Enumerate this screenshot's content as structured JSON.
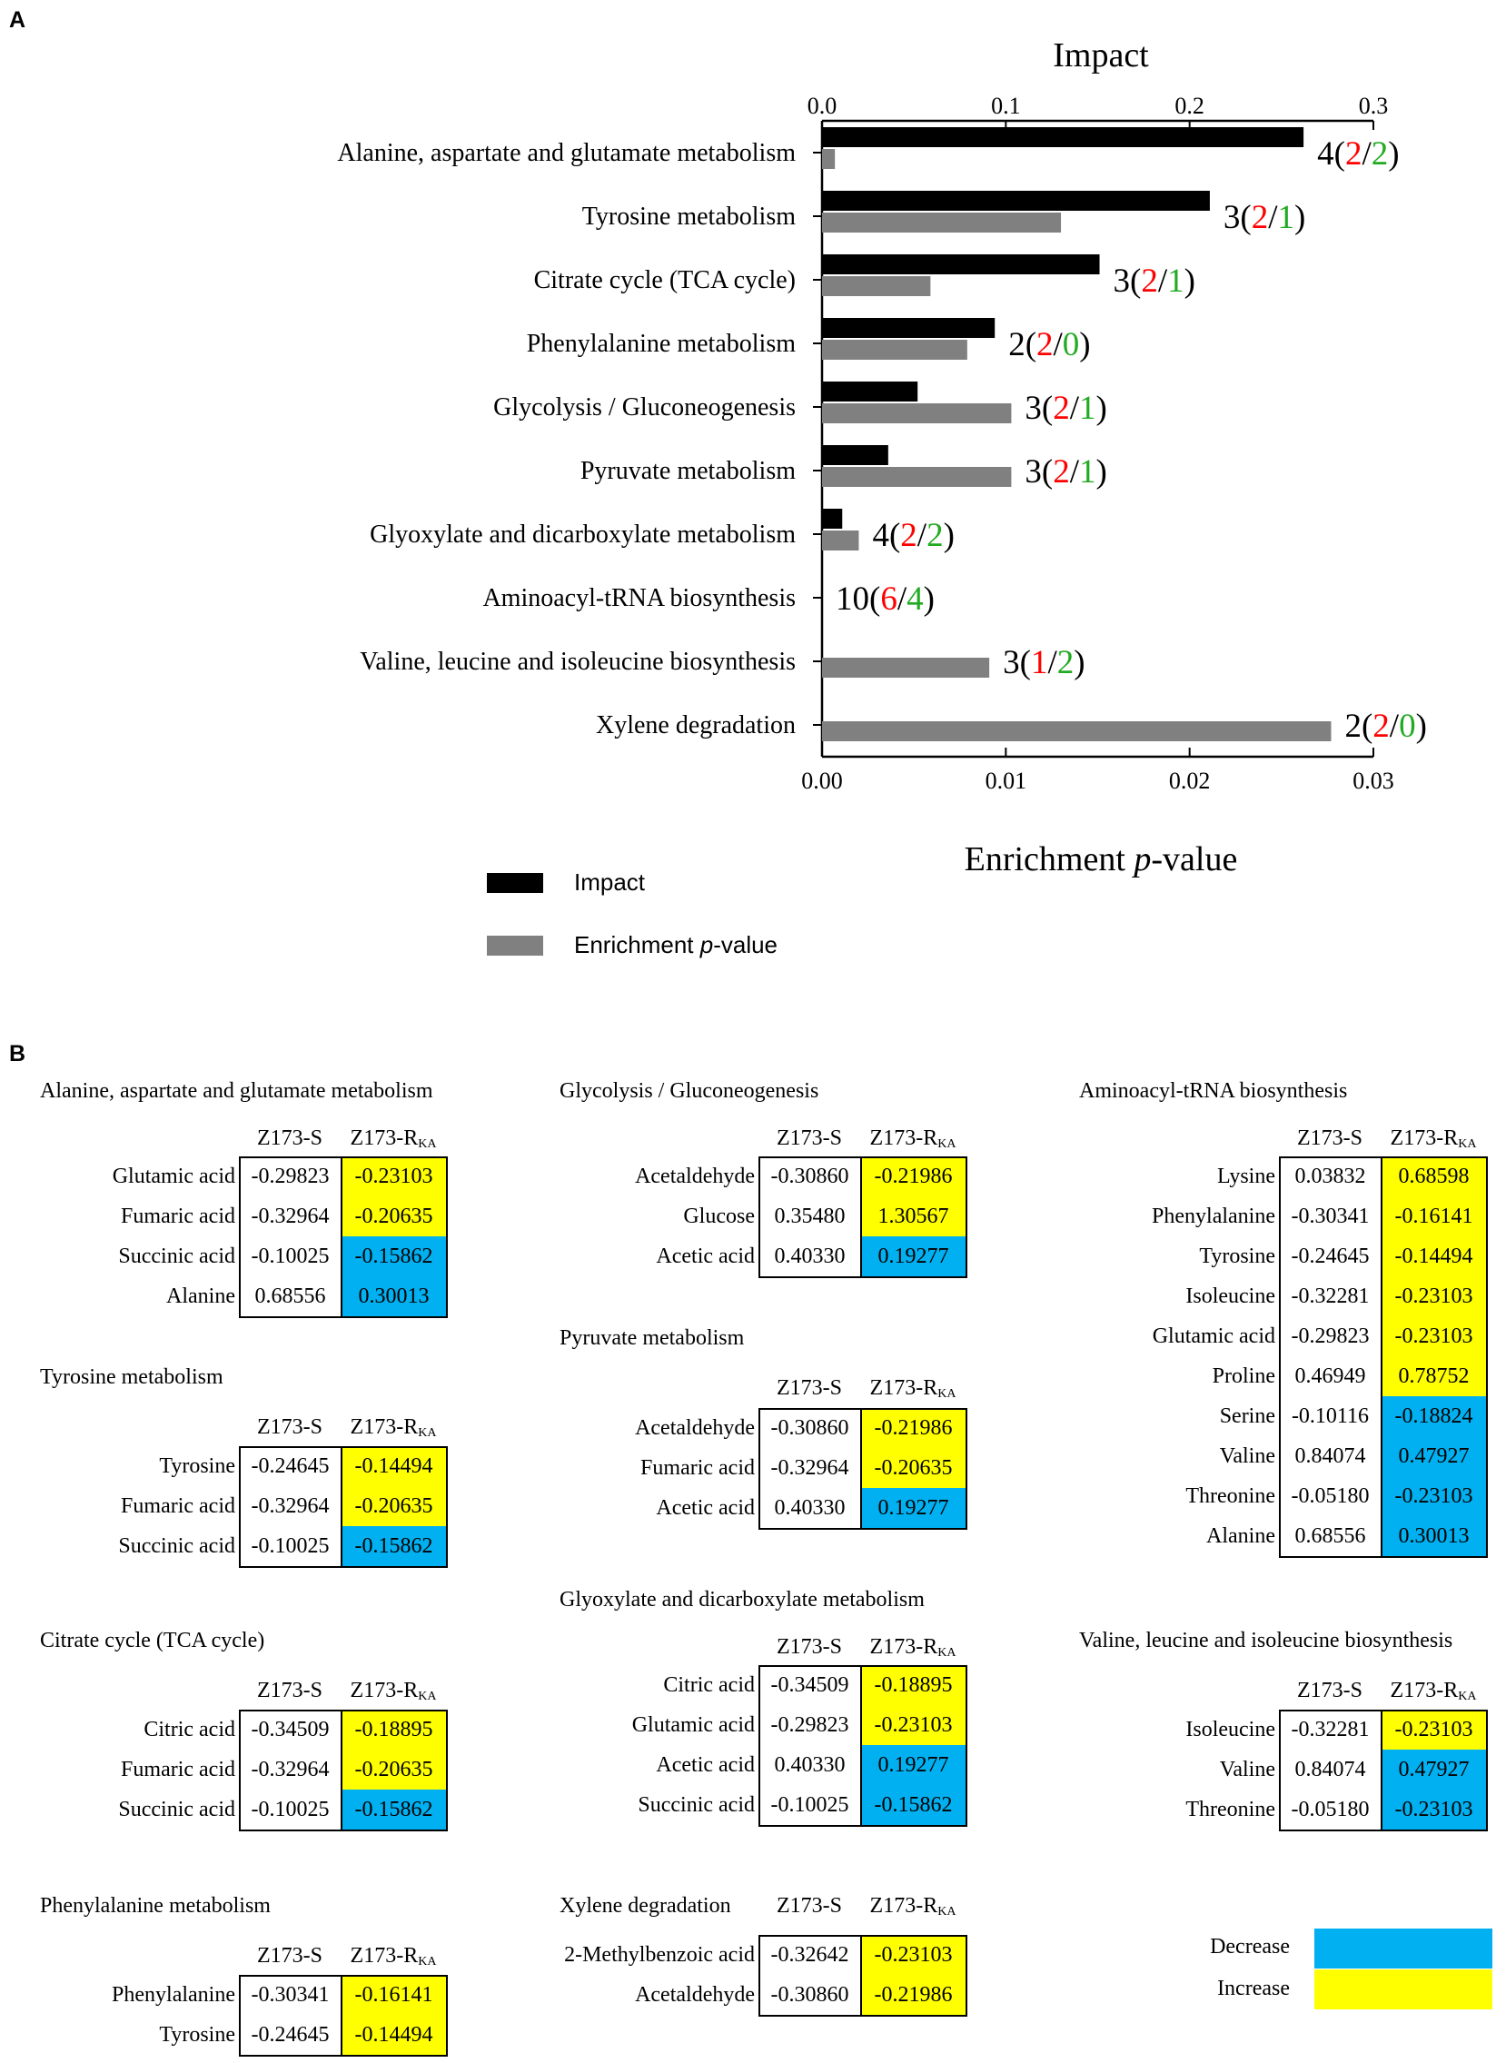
{
  "panel_a": {
    "letter": "A"
  },
  "panel_b": {
    "letter": "B"
  },
  "chart_data": {
    "type": "bar",
    "orientation": "horizontal",
    "top_axis": {
      "label": "Impact",
      "range": [
        0,
        0.3
      ],
      "ticks": [
        "0.0",
        "0.1",
        "0.2",
        "0.3"
      ]
    },
    "bottom_axis": {
      "label": "Enrichment p-value",
      "label_prefix": "Enrichment ",
      "label_italic": "p",
      "label_suffix": "-value",
      "range": [
        0,
        0.03
      ],
      "ticks": [
        "0.00",
        "0.01",
        "0.02",
        "0.03"
      ]
    },
    "categories": [
      "Alanine, aspartate and glutamate metabolism",
      "Tyrosine metabolism",
      "Citrate cycle (TCA cycle)",
      "Phenylalanine metabolism",
      "Glycolysis / Gluconeogenesis",
      "Pyruvate metabolism",
      "Glyoxylate and dicarboxylate metabolism",
      "Aminoacyl-tRNA biosynthesis",
      "Valine, leucine and isoleucine biosynthesis",
      "Xylene degradation"
    ],
    "series": [
      {
        "name": "Impact",
        "color": "#000000",
        "values": [
          0.262,
          0.211,
          0.151,
          0.094,
          0.052,
          0.036,
          0.011,
          0.0,
          0.0,
          0.0
        ]
      },
      {
        "name": "Enrichment p-value",
        "color": "#808080",
        "values": [
          0.0007,
          0.013,
          0.0059,
          0.0079,
          0.0103,
          0.0103,
          0.002,
          0.0,
          0.0091,
          0.0277
        ]
      }
    ],
    "annotations": [
      {
        "total": "4",
        "up": "2",
        "down": "2"
      },
      {
        "total": "3",
        "up": "2",
        "down": "1"
      },
      {
        "total": "3",
        "up": "2",
        "down": "1"
      },
      {
        "total": "2",
        "up": "2",
        "down": "0"
      },
      {
        "total": "3",
        "up": "2",
        "down": "1"
      },
      {
        "total": "3",
        "up": "2",
        "down": "1"
      },
      {
        "total": "4",
        "up": "2",
        "down": "2"
      },
      {
        "total": "10",
        "up": "6",
        "down": "4"
      },
      {
        "total": "3",
        "up": "1",
        "down": "2"
      },
      {
        "total": "2",
        "up": "2",
        "down": "0"
      }
    ],
    "annotation_colors": {
      "up": "#ff0000",
      "down": "#22aa22"
    },
    "legend": [
      {
        "label": "Impact",
        "color": "#000000"
      },
      {
        "label_prefix": "Enrichment ",
        "label_italic": "p",
        "label_suffix": "-value",
        "color": "#808080"
      }
    ]
  },
  "table_header": {
    "col1": "Z173-S",
    "col2_base": "Z173-R",
    "col2_sub": "KA"
  },
  "tables": [
    {
      "id": "ala",
      "title": "Alanine, aspartate and glutamate metabolism",
      "rows": [
        {
          "name": "Glutamic acid",
          "s": "-0.29823",
          "r": "-0.23103",
          "change": "increase"
        },
        {
          "name": "Fumaric acid",
          "s": "-0.32964",
          "r": "-0.20635",
          "change": "increase"
        },
        {
          "name": "Succinic acid",
          "s": "-0.10025",
          "r": "-0.15862",
          "change": "decrease"
        },
        {
          "name": "Alanine",
          "s": "0.68556",
          "r": "0.30013",
          "change": "decrease"
        }
      ]
    },
    {
      "id": "tyr",
      "title": "Tyrosine metabolism",
      "rows": [
        {
          "name": "Tyrosine",
          "s": "-0.24645",
          "r": "-0.14494",
          "change": "increase"
        },
        {
          "name": "Fumaric acid",
          "s": "-0.32964",
          "r": "-0.20635",
          "change": "increase"
        },
        {
          "name": "Succinic acid",
          "s": "-0.10025",
          "r": "-0.15862",
          "change": "decrease"
        }
      ]
    },
    {
      "id": "tca",
      "title": "Citrate cycle (TCA cycle)",
      "rows": [
        {
          "name": "Citric acid",
          "s": "-0.34509",
          "r": "-0.18895",
          "change": "increase"
        },
        {
          "name": "Fumaric acid",
          "s": "-0.32964",
          "r": "-0.20635",
          "change": "increase"
        },
        {
          "name": "Succinic acid",
          "s": "-0.10025",
          "r": "-0.15862",
          "change": "decrease"
        }
      ]
    },
    {
      "id": "phe",
      "title": "Phenylalanine metabolism",
      "rows": [
        {
          "name": "Phenylalanine",
          "s": "-0.30341",
          "r": "-0.16141",
          "change": "increase"
        },
        {
          "name": "Tyrosine",
          "s": "-0.24645",
          "r": "-0.14494",
          "change": "increase"
        }
      ]
    },
    {
      "id": "gly",
      "title": "Glycolysis / Gluconeogenesis",
      "rows": [
        {
          "name": "Acetaldehyde",
          "s": "-0.30860",
          "r": "-0.21986",
          "change": "increase"
        },
        {
          "name": "Glucose",
          "s": "0.35480",
          "r": "1.30567",
          "change": "increase"
        },
        {
          "name": "Acetic acid",
          "s": "0.40330",
          "r": "0.19277",
          "change": "decrease"
        }
      ]
    },
    {
      "id": "pyr",
      "title": "Pyruvate metabolism",
      "rows": [
        {
          "name": "Acetaldehyde",
          "s": "-0.30860",
          "r": "-0.21986",
          "change": "increase"
        },
        {
          "name": "Fumaric acid",
          "s": "-0.32964",
          "r": "-0.20635",
          "change": "increase"
        },
        {
          "name": "Acetic acid",
          "s": "0.40330",
          "r": "0.19277",
          "change": "decrease"
        }
      ]
    },
    {
      "id": "glx",
      "title": "Glyoxylate and dicarboxylate metabolism",
      "rows": [
        {
          "name": "Citric acid",
          "s": "-0.34509",
          "r": "-0.18895",
          "change": "increase"
        },
        {
          "name": "Glutamic acid",
          "s": "-0.29823",
          "r": "-0.23103",
          "change": "increase"
        },
        {
          "name": "Acetic acid",
          "s": "0.40330",
          "r": "0.19277",
          "change": "decrease"
        },
        {
          "name": "Succinic acid",
          "s": "-0.10025",
          "r": "-0.15862",
          "change": "decrease"
        }
      ]
    },
    {
      "id": "xyl",
      "title": "Xylene degradation",
      "rows": [
        {
          "name": "2-Methylbenzoic acid",
          "s": "-0.32642",
          "r": "-0.23103",
          "change": "increase"
        },
        {
          "name": "Acetaldehyde",
          "s": "-0.30860",
          "r": "-0.21986",
          "change": "increase"
        }
      ]
    },
    {
      "id": "amt",
      "title": "Aminoacyl-tRNA biosynthesis",
      "rows": [
        {
          "name": "Lysine",
          "s": "0.03832",
          "r": "0.68598",
          "change": "increase"
        },
        {
          "name": "Phenylalanine",
          "s": "-0.30341",
          "r": "-0.16141",
          "change": "increase"
        },
        {
          "name": "Tyrosine",
          "s": "-0.24645",
          "r": "-0.14494",
          "change": "increase"
        },
        {
          "name": "Isoleucine",
          "s": "-0.32281",
          "r": "-0.23103",
          "change": "increase"
        },
        {
          "name": "Glutamic acid",
          "s": "-0.29823",
          "r": "-0.23103",
          "change": "increase"
        },
        {
          "name": "Proline",
          "s": "0.46949",
          "r": "0.78752",
          "change": "increase"
        },
        {
          "name": "Serine",
          "s": "-0.10116",
          "r": "-0.18824",
          "change": "decrease"
        },
        {
          "name": "Valine",
          "s": "0.84074",
          "r": "0.47927",
          "change": "decrease"
        },
        {
          "name": "Threonine",
          "s": "-0.05180",
          "r": "-0.23103",
          "change": "decrease"
        },
        {
          "name": "Alanine",
          "s": "0.68556",
          "r": "0.30013",
          "change": "decrease"
        }
      ]
    },
    {
      "id": "val",
      "title": "Valine, leucine and isoleucine biosynthesis",
      "rows": [
        {
          "name": "Isoleucine",
          "s": "-0.32281",
          "r": "-0.23103",
          "change": "increase"
        },
        {
          "name": "Valine",
          "s": "0.84074",
          "r": "0.47927",
          "change": "decrease"
        },
        {
          "name": "Threonine",
          "s": "-0.05180",
          "r": "-0.23103",
          "change": "decrease"
        }
      ]
    }
  ],
  "color_key": {
    "decrease": {
      "label": "Decrease",
      "color": "#00b0f0"
    },
    "increase": {
      "label": "Increase",
      "color": "#ffff00"
    }
  }
}
